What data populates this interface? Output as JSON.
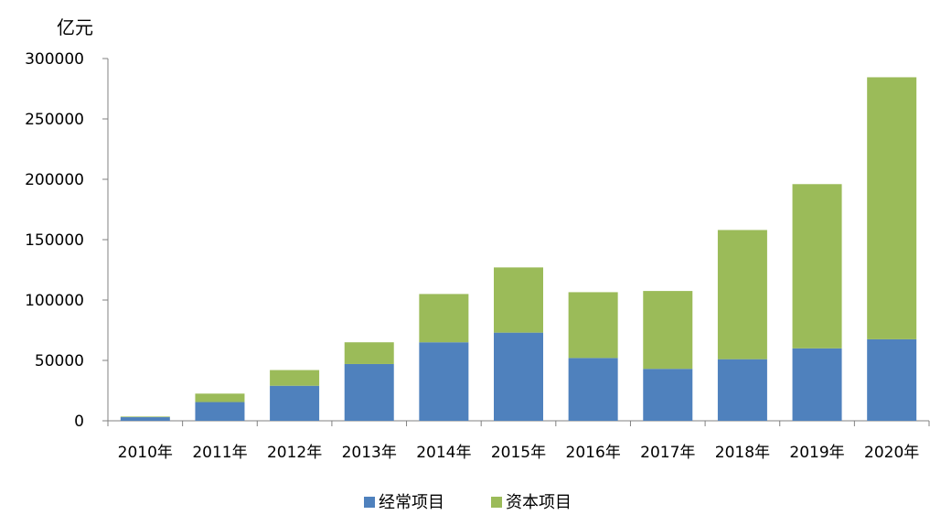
{
  "chart_data": {
    "type": "bar",
    "stacked": true,
    "y_unit": "亿元",
    "categories": [
      "2010年",
      "2011年",
      "2012年",
      "2013年",
      "2014年",
      "2015年",
      "2016年",
      "2017年",
      "2018年",
      "2019年",
      "2020年"
    ],
    "series": [
      {
        "name": "经常项目",
        "color": "#4f81bd",
        "values": [
          3000,
          15500,
          29000,
          47000,
          65000,
          73000,
          52000,
          43000,
          51000,
          60000,
          67500
        ]
      },
      {
        "name": "资本项目",
        "color": "#9bbb59",
        "values": [
          500,
          7000,
          13000,
          18000,
          40000,
          54000,
          54500,
          64500,
          107000,
          136000,
          217000
        ]
      }
    ],
    "ylim": [
      0,
      300000
    ],
    "yticks": [
      "0",
      "50000",
      "100000",
      "150000",
      "200000",
      "250000",
      "300000"
    ],
    "grid": false,
    "legend": "bottom"
  }
}
